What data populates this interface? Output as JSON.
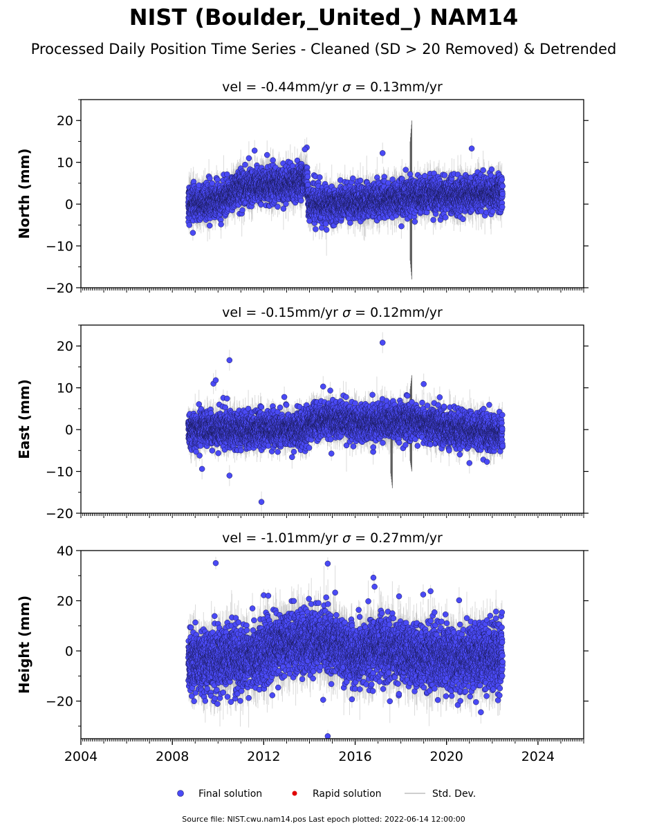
{
  "title": "NIST (Boulder,_United_) NAM14",
  "subtitle": "Processed Daily Position Time Series - Cleaned (SD > 20 Removed) & Detrended",
  "footer": "Source file: NIST.cwu.nam14.pos  Last epoch plotted: 2022-06-14 12:00:00",
  "legend": {
    "final": "Final solution",
    "rapid": "Rapid solution",
    "std": "Std. Dev."
  },
  "colors": {
    "final": "#4a4af5",
    "rapid": "#e00000",
    "std": "#bdbdbd"
  },
  "chart_data": [
    {
      "type": "scatter",
      "component": "north",
      "title_prefix": "vel = -0.44mm/yr",
      "title_sigma": "= 0.13mm/yr",
      "ylabel": "North (mm)",
      "ylim": [
        -20,
        25
      ],
      "yticks": [
        {
          "v": -20,
          "label": "−20"
        },
        {
          "v": -10,
          "label": "−10"
        },
        {
          "v": 0,
          "label": "0"
        },
        {
          "v": 10,
          "label": "10"
        },
        {
          "v": 20,
          "label": "20"
        }
      ],
      "xlim": [
        2004,
        2026
      ],
      "data_range": [
        2008.7,
        2022.45
      ],
      "noise_sd": 2.0,
      "err_sd": 1.6,
      "trend": [
        [
          2008.7,
          0
        ],
        [
          2010.2,
          1
        ],
        [
          2010.9,
          4
        ],
        [
          2012.0,
          4.5
        ],
        [
          2013.3,
          5
        ],
        [
          2013.9,
          6
        ],
        [
          2013.95,
          0
        ],
        [
          2016.5,
          0.5
        ],
        [
          2018.5,
          1.8
        ],
        [
          2020.5,
          2.2
        ],
        [
          2022.45,
          2.5
        ]
      ],
      "outliers": [
        [
          2011.6,
          12.8
        ],
        [
          2013.8,
          13.1
        ],
        [
          2017.2,
          12.2
        ],
        [
          2021.1,
          13.3
        ],
        [
          2012.4,
          10.5
        ],
        [
          2014.0,
          -4
        ]
      ],
      "spikes": [
        [
          2018.45,
          20,
          -18
        ]
      ]
    },
    {
      "type": "scatter",
      "component": "east",
      "title_prefix": "vel = -0.15mm/yr",
      "title_sigma": "= 0.12mm/yr",
      "ylabel": "East (mm)",
      "ylim": [
        -20,
        25
      ],
      "yticks": [
        {
          "v": -20,
          "label": "−20"
        },
        {
          "v": -10,
          "label": "−10"
        },
        {
          "v": 0,
          "label": "0"
        },
        {
          "v": 10,
          "label": "10"
        },
        {
          "v": 20,
          "label": "20"
        }
      ],
      "xlim": [
        2004,
        2026
      ],
      "data_range": [
        2008.7,
        2022.45
      ],
      "noise_sd": 2.0,
      "err_sd": 1.4,
      "trend": [
        [
          2008.7,
          0
        ],
        [
          2013.8,
          0
        ],
        [
          2014.3,
          2.5
        ],
        [
          2016.5,
          1.5
        ],
        [
          2018.5,
          2
        ],
        [
          2020.5,
          0
        ],
        [
          2022.45,
          -1
        ]
      ],
      "outliers": [
        [
          2009.8,
          11.0
        ],
        [
          2009.9,
          11.8
        ],
        [
          2010.5,
          16.6
        ],
        [
          2009.3,
          -9.4
        ],
        [
          2010.5,
          -11.0
        ],
        [
          2011.9,
          -17.3
        ],
        [
          2017.2,
          20.8
        ],
        [
          2019.0,
          10.9
        ],
        [
          2012.9,
          7.8
        ],
        [
          2014.6,
          10.3
        ],
        [
          2021.0,
          -8.0
        ]
      ],
      "spikes": [
        [
          2018.45,
          13,
          -10
        ],
        [
          2017.6,
          7,
          -14
        ]
      ]
    },
    {
      "type": "scatter",
      "component": "height",
      "title_prefix": "vel = -1.01mm/yr",
      "title_sigma": "= 0.27mm/yr",
      "ylabel": "Height (mm)",
      "ylim": [
        -35,
        40
      ],
      "yticks": [
        {
          "v": -20,
          "label": "−20"
        },
        {
          "v": 0,
          "label": "0"
        },
        {
          "v": 20,
          "label": "20"
        },
        {
          "v": 40,
          "label": "40"
        }
      ],
      "xticks": [
        {
          "v": 2004,
          "label": "2004"
        },
        {
          "v": 2008,
          "label": "2008"
        },
        {
          "v": 2012,
          "label": "2012"
        },
        {
          "v": 2016,
          "label": "2016"
        },
        {
          "v": 2020,
          "label": "2020"
        },
        {
          "v": 2024,
          "label": "2024"
        }
      ],
      "xlim": [
        2004,
        2026
      ],
      "data_range": [
        2008.7,
        2022.45
      ],
      "noise_sd": 6.0,
      "err_sd": 4.0,
      "trend": [
        [
          2008.7,
          -4
        ],
        [
          2011.5,
          -3
        ],
        [
          2012.8,
          3
        ],
        [
          2015.0,
          3
        ],
        [
          2016.0,
          -2
        ],
        [
          2017.0,
          2
        ],
        [
          2018.5,
          -2
        ],
        [
          2020.5,
          -3
        ],
        [
          2022.45,
          -2
        ]
      ],
      "outliers": [
        [
          2009.9,
          35.0
        ],
        [
          2014.8,
          34.8
        ],
        [
          2016.8,
          29.2
        ],
        [
          2016.85,
          25.6
        ],
        [
          2019.3,
          23.8
        ],
        [
          2014.8,
          -34.0
        ],
        [
          2014.6,
          -19.5
        ],
        [
          2012.0,
          22.2
        ],
        [
          2012.2,
          22.0
        ]
      ],
      "spikes": []
    }
  ]
}
